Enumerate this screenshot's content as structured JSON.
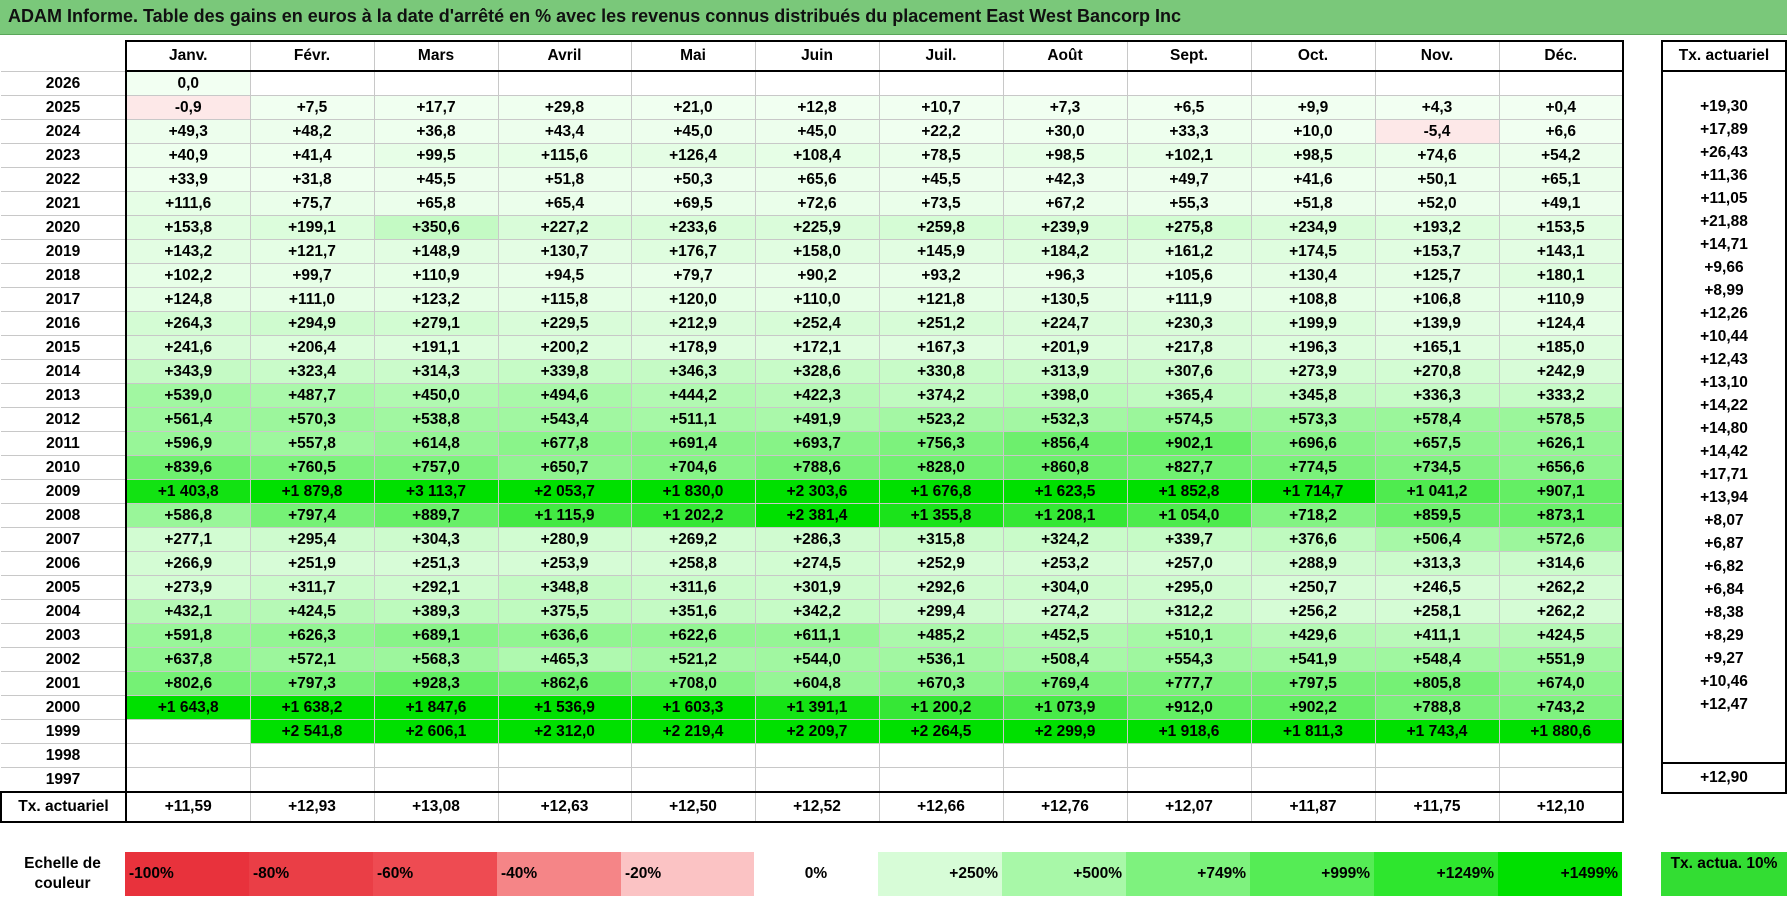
{
  "title": "ADAM Informe. Table des gains en euros à la date d'arrêté en % avec les revenus connus distribués du placement East West Bancorp Inc",
  "months": [
    "Janv.",
    "Févr.",
    "Mars",
    "Avril",
    "Mai",
    "Juin",
    "Juil.",
    "Août",
    "Sept.",
    "Oct.",
    "Nov.",
    "Déc."
  ],
  "tx_header": "Tx. actuariel",
  "rows": [
    {
      "year": "2026",
      "values": [
        "0,0",
        "",
        "",
        "",
        "",
        "",
        "",
        "",
        "",
        "",
        "",
        ""
      ],
      "tx": ""
    },
    {
      "year": "2025",
      "values": [
        "-0,9",
        "+7,5",
        "+17,7",
        "+29,8",
        "+21,0",
        "+12,8",
        "+10,7",
        "+7,3",
        "+6,5",
        "+9,9",
        "+4,3",
        "+0,4"
      ],
      "tx": "+19,30"
    },
    {
      "year": "2024",
      "values": [
        "+49,3",
        "+48,2",
        "+36,8",
        "+43,4",
        "+45,0",
        "+45,0",
        "+22,2",
        "+30,0",
        "+33,3",
        "+10,0",
        "-5,4",
        "+6,6"
      ],
      "tx": "+17,89"
    },
    {
      "year": "2023",
      "values": [
        "+40,9",
        "+41,4",
        "+99,5",
        "+115,6",
        "+126,4",
        "+108,4",
        "+78,5",
        "+98,5",
        "+102,1",
        "+98,5",
        "+74,6",
        "+54,2"
      ],
      "tx": "+26,43"
    },
    {
      "year": "2022",
      "values": [
        "+33,9",
        "+31,8",
        "+45,5",
        "+51,8",
        "+50,3",
        "+65,6",
        "+45,5",
        "+42,3",
        "+49,7",
        "+41,6",
        "+50,1",
        "+65,1"
      ],
      "tx": "+11,36"
    },
    {
      "year": "2021",
      "values": [
        "+111,6",
        "+75,7",
        "+65,8",
        "+65,4",
        "+69,5",
        "+72,6",
        "+73,5",
        "+67,2",
        "+55,3",
        "+51,8",
        "+52,0",
        "+49,1"
      ],
      "tx": "+11,05"
    },
    {
      "year": "2020",
      "values": [
        "+153,8",
        "+199,1",
        "+350,6",
        "+227,2",
        "+233,6",
        "+225,9",
        "+259,8",
        "+239,9",
        "+275,8",
        "+234,9",
        "+193,2",
        "+153,5"
      ],
      "tx": "+21,88"
    },
    {
      "year": "2019",
      "values": [
        "+143,2",
        "+121,7",
        "+148,9",
        "+130,7",
        "+176,7",
        "+158,0",
        "+145,9",
        "+184,2",
        "+161,2",
        "+174,5",
        "+153,7",
        "+143,1"
      ],
      "tx": "+14,71"
    },
    {
      "year": "2018",
      "values": [
        "+102,2",
        "+99,7",
        "+110,9",
        "+94,5",
        "+79,7",
        "+90,2",
        "+93,2",
        "+96,3",
        "+105,6",
        "+130,4",
        "+125,7",
        "+180,1"
      ],
      "tx": "+9,66"
    },
    {
      "year": "2017",
      "values": [
        "+124,8",
        "+111,0",
        "+123,2",
        "+115,8",
        "+120,0",
        "+110,0",
        "+121,8",
        "+130,5",
        "+111,9",
        "+108,8",
        "+106,8",
        "+110,9"
      ],
      "tx": "+8,99"
    },
    {
      "year": "2016",
      "values": [
        "+264,3",
        "+294,9",
        "+279,1",
        "+229,5",
        "+212,9",
        "+252,4",
        "+251,2",
        "+224,7",
        "+230,3",
        "+199,9",
        "+139,9",
        "+124,4"
      ],
      "tx": "+12,26"
    },
    {
      "year": "2015",
      "values": [
        "+241,6",
        "+206,4",
        "+191,1",
        "+200,2",
        "+178,9",
        "+172,1",
        "+167,3",
        "+201,9",
        "+217,8",
        "+196,3",
        "+165,1",
        "+185,0"
      ],
      "tx": "+10,44"
    },
    {
      "year": "2014",
      "values": [
        "+343,9",
        "+323,4",
        "+314,3",
        "+339,8",
        "+346,3",
        "+328,6",
        "+330,8",
        "+313,9",
        "+307,6",
        "+273,9",
        "+270,8",
        "+242,9"
      ],
      "tx": "+12,43"
    },
    {
      "year": "2013",
      "values": [
        "+539,0",
        "+487,7",
        "+450,0",
        "+494,6",
        "+444,2",
        "+422,3",
        "+374,2",
        "+398,0",
        "+365,4",
        "+345,8",
        "+336,3",
        "+333,2"
      ],
      "tx": "+13,10"
    },
    {
      "year": "2012",
      "values": [
        "+561,4",
        "+570,3",
        "+538,8",
        "+543,4",
        "+511,1",
        "+491,9",
        "+523,2",
        "+532,3",
        "+574,5",
        "+573,3",
        "+578,4",
        "+578,5"
      ],
      "tx": "+14,22"
    },
    {
      "year": "2011",
      "values": [
        "+596,9",
        "+557,8",
        "+614,8",
        "+677,8",
        "+691,4",
        "+693,7",
        "+756,3",
        "+856,4",
        "+902,1",
        "+696,6",
        "+657,5",
        "+626,1"
      ],
      "tx": "+14,80"
    },
    {
      "year": "2010",
      "values": [
        "+839,6",
        "+760,5",
        "+757,0",
        "+650,7",
        "+704,6",
        "+788,6",
        "+828,0",
        "+860,8",
        "+827,7",
        "+774,5",
        "+734,5",
        "+656,6"
      ],
      "tx": "+14,42"
    },
    {
      "year": "2009",
      "values": [
        "+1 403,8",
        "+1 879,8",
        "+3 113,7",
        "+2 053,7",
        "+1 830,0",
        "+2 303,6",
        "+1 676,8",
        "+1 623,5",
        "+1 852,8",
        "+1 714,7",
        "+1 041,2",
        "+907,1"
      ],
      "tx": "+17,71"
    },
    {
      "year": "2008",
      "values": [
        "+586,8",
        "+797,4",
        "+889,7",
        "+1 115,9",
        "+1 202,2",
        "+2 381,4",
        "+1 355,8",
        "+1 208,1",
        "+1 054,0",
        "+718,2",
        "+859,5",
        "+873,1"
      ],
      "tx": "+13,94"
    },
    {
      "year": "2007",
      "values": [
        "+277,1",
        "+295,4",
        "+304,3",
        "+280,9",
        "+269,2",
        "+286,3",
        "+315,8",
        "+324,2",
        "+339,7",
        "+376,6",
        "+506,4",
        "+572,6"
      ],
      "tx": "+8,07"
    },
    {
      "year": "2006",
      "values": [
        "+266,9",
        "+251,9",
        "+251,3",
        "+253,9",
        "+258,8",
        "+274,5",
        "+252,9",
        "+253,2",
        "+257,0",
        "+288,9",
        "+313,3",
        "+314,6"
      ],
      "tx": "+6,87"
    },
    {
      "year": "2005",
      "values": [
        "+273,9",
        "+311,7",
        "+292,1",
        "+348,8",
        "+311,6",
        "+301,9",
        "+292,6",
        "+304,0",
        "+295,0",
        "+250,7",
        "+246,5",
        "+262,2"
      ],
      "tx": "+6,82"
    },
    {
      "year": "2004",
      "values": [
        "+432,1",
        "+424,5",
        "+389,3",
        "+375,5",
        "+351,6",
        "+342,2",
        "+299,4",
        "+274,2",
        "+312,2",
        "+256,2",
        "+258,1",
        "+262,2"
      ],
      "tx": "+6,84"
    },
    {
      "year": "2003",
      "values": [
        "+591,8",
        "+626,3",
        "+689,1",
        "+636,6",
        "+622,6",
        "+611,1",
        "+485,2",
        "+452,5",
        "+510,1",
        "+429,6",
        "+411,1",
        "+424,5"
      ],
      "tx": "+8,38"
    },
    {
      "year": "2002",
      "values": [
        "+637,8",
        "+572,1",
        "+568,3",
        "+465,3",
        "+521,2",
        "+544,0",
        "+536,1",
        "+508,4",
        "+554,3",
        "+541,9",
        "+548,4",
        "+551,9"
      ],
      "tx": "+8,29"
    },
    {
      "year": "2001",
      "values": [
        "+802,6",
        "+797,3",
        "+928,3",
        "+862,6",
        "+708,0",
        "+604,8",
        "+670,3",
        "+769,4",
        "+777,7",
        "+797,5",
        "+805,8",
        "+674,0"
      ],
      "tx": "+9,27"
    },
    {
      "year": "2000",
      "values": [
        "+1 643,8",
        "+1 638,2",
        "+1 847,6",
        "+1 536,9",
        "+1 603,3",
        "+1 391,1",
        "+1 200,2",
        "+1 073,9",
        "+912,0",
        "+902,2",
        "+788,8",
        "+743,2"
      ],
      "tx": "+10,46"
    },
    {
      "year": "1999",
      "values": [
        "",
        "+2 541,8",
        "+2 606,1",
        "+2 312,0",
        "+2 219,4",
        "+2 209,7",
        "+2 264,5",
        "+2 299,9",
        "+1 918,6",
        "+1 811,3",
        "+1 743,4",
        "+1 880,6"
      ],
      "tx": "+12,47"
    },
    {
      "year": "1998",
      "values": [
        "",
        "",
        "",
        "",
        "",
        "",
        "",
        "",
        "",
        "",
        "",
        ""
      ],
      "tx": ""
    },
    {
      "year": "1997",
      "values": [
        "",
        "",
        "",
        "",
        "",
        "",
        "",
        "",
        "",
        "",
        "",
        ""
      ],
      "tx": ""
    }
  ],
  "tx_row": {
    "label": "Tx. actuariel",
    "values": [
      "+11,59",
      "+12,93",
      "+13,08",
      "+12,63",
      "+12,50",
      "+12,52",
      "+12,66",
      "+12,76",
      "+12,07",
      "+11,87",
      "+11,75",
      "+12,10"
    ],
    "total": "+12,90"
  },
  "legend": {
    "label": "Echelle de couleur",
    "items": [
      {
        "text": "-100%",
        "color": "#e8323c"
      },
      {
        "text": "-80%",
        "color": "#ea3e46"
      },
      {
        "text": "-60%",
        "color": "#ee4b52"
      },
      {
        "text": "-40%",
        "color": "#f58587"
      },
      {
        "text": "-20%",
        "color": "#fbc3c4"
      },
      {
        "text": "0%",
        "color": "#ffffff"
      },
      {
        "text": "+250%",
        "color": "#d7fcd7"
      },
      {
        "text": "+500%",
        "color": "#a8f8a8"
      },
      {
        "text": "+749%",
        "color": "#7ef27e"
      },
      {
        "text": "+999%",
        "color": "#55ec55"
      },
      {
        "text": "+1249%",
        "color": "#2ee62e"
      },
      {
        "text": "+1499%",
        "color": "#00e000"
      }
    ],
    "tx_label": "Tx. actua. 10%",
    "tx_color": "#33dd33"
  },
  "colors": {
    "title_bar": "#7ac87a",
    "negative_pale": "#fde8e8",
    "positive_max": "#00e000"
  }
}
